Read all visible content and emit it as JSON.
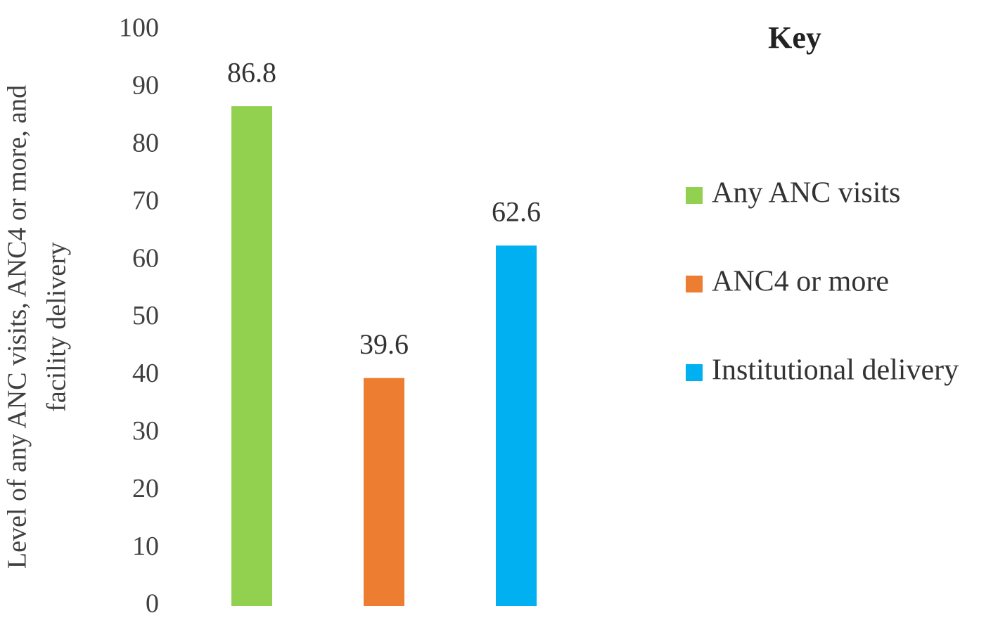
{
  "chart_data": {
    "type": "bar",
    "ylabel": [
      "Level of any ANC visits,  ANC4 or  more, and",
      "facility delivery"
    ],
    "legend_title": "Key",
    "legend": "right",
    "grid": false,
    "ylim": [
      0,
      100
    ],
    "yticks": [
      0,
      10,
      20,
      30,
      40,
      50,
      60,
      70,
      80,
      90,
      100
    ],
    "series": [
      {
        "name": "Any ANC visits",
        "color": "#92d050",
        "values": [
          86.8
        ]
      },
      {
        "name": "ANC4 or more",
        "color": "#ed7d31",
        "values": [
          39.6
        ]
      },
      {
        "name": "Institutional delivery",
        "color": "#00b0f0",
        "values": [
          62.6
        ]
      }
    ]
  }
}
